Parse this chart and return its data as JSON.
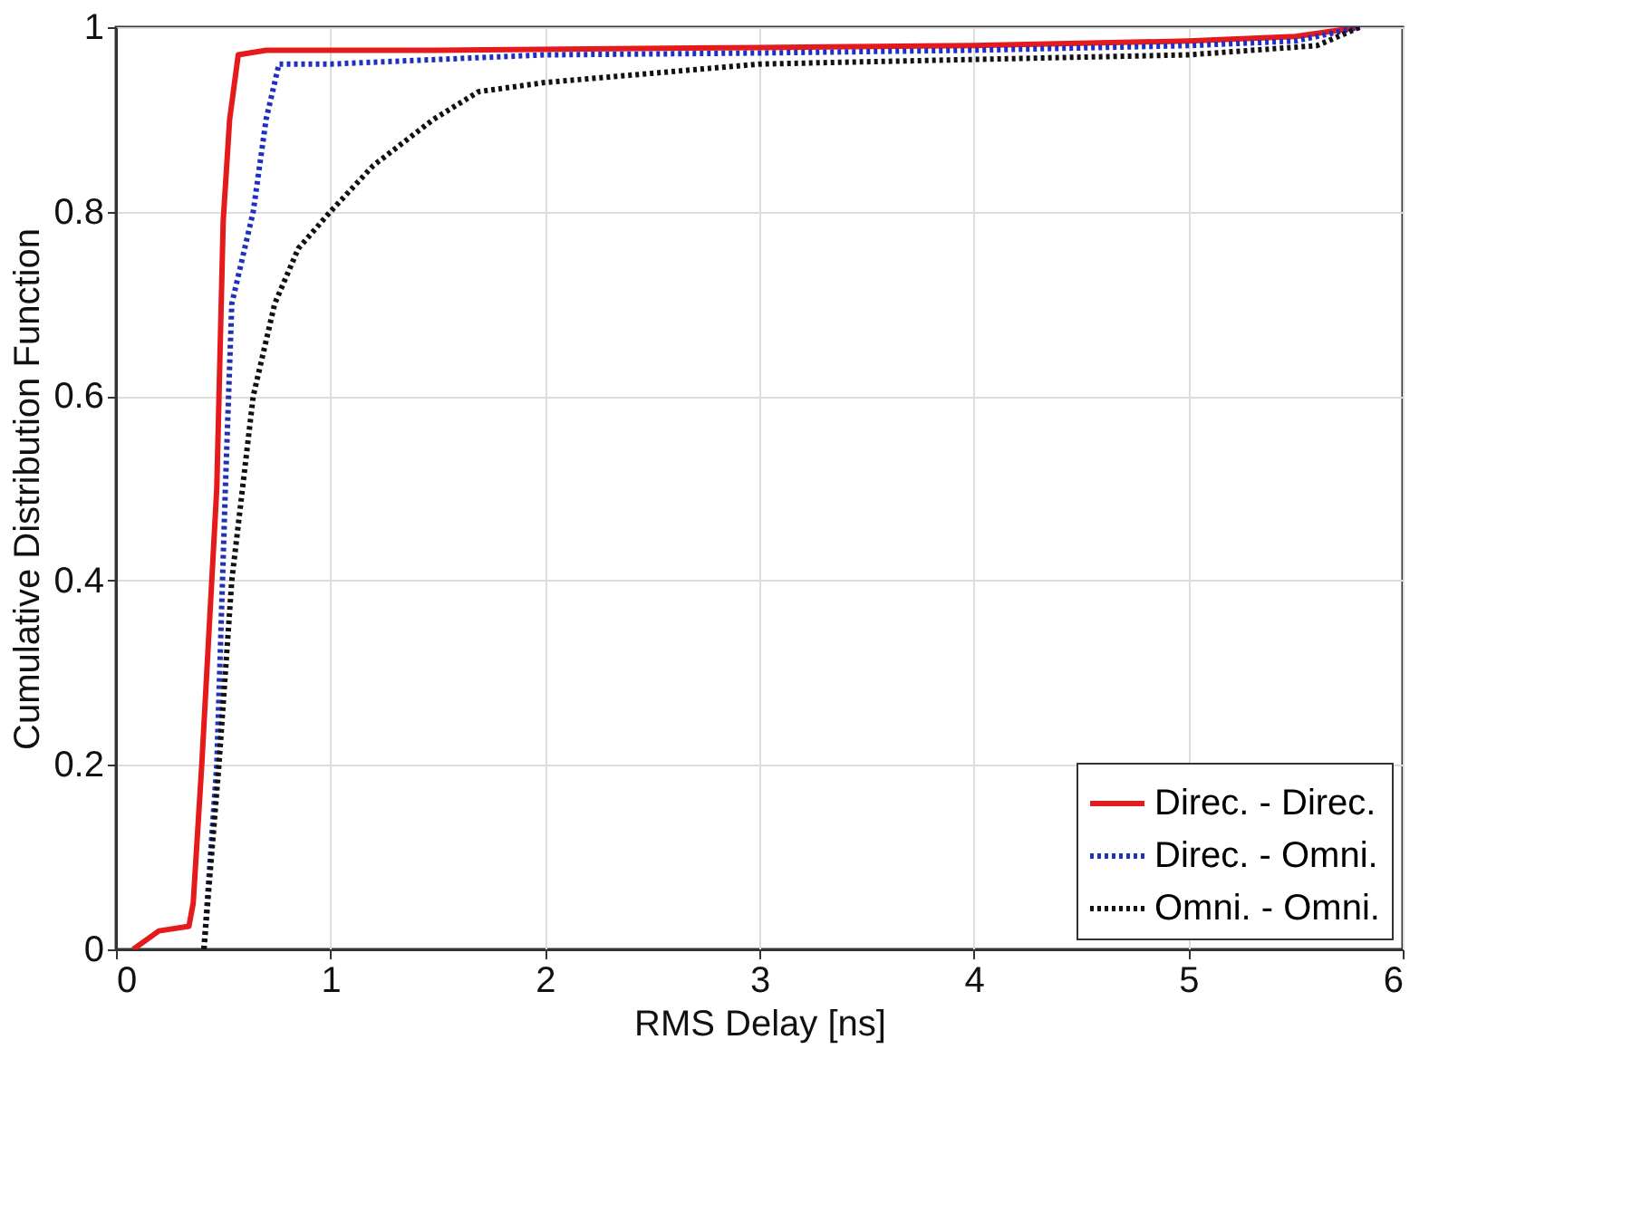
{
  "chart_data": {
    "type": "line",
    "xlabel": "RMS Delay [ns]",
    "ylabel": "Cumulative Distribution Function",
    "xlim": [
      0,
      6
    ],
    "ylim": [
      0,
      1
    ],
    "xticks": [
      0,
      1,
      2,
      3,
      4,
      5,
      6
    ],
    "yticks": [
      0,
      0.2,
      0.4,
      0.6,
      0.8,
      1
    ],
    "grid": true,
    "legend": "bottom right",
    "marker": "none",
    "series": [
      {
        "name": "Direc. - Direc.",
        "color": "#e41a1c",
        "line_style": "solid",
        "x": [
          0.08,
          0.2,
          0.34,
          0.36,
          0.4,
          0.47,
          0.5,
          0.53,
          0.57,
          0.7,
          1.5,
          3,
          4,
          5,
          5.5,
          5.8
        ],
        "values": [
          0.0,
          0.02,
          0.025,
          0.05,
          0.2,
          0.5,
          0.79,
          0.9,
          0.97,
          0.975,
          0.975,
          0.978,
          0.98,
          0.985,
          0.99,
          1.0
        ]
      },
      {
        "name": "Direc. - Omni.",
        "color": "#1f2fbf",
        "line_style": "dotted",
        "x": [
          0.41,
          0.44,
          0.47,
          0.51,
          0.54,
          0.64,
          0.7,
          0.76,
          1.0,
          1.5,
          2,
          3,
          4,
          5,
          5.5,
          5.8
        ],
        "values": [
          0.0,
          0.1,
          0.2,
          0.5,
          0.7,
          0.8,
          0.9,
          0.96,
          0.96,
          0.965,
          0.97,
          0.972,
          0.975,
          0.98,
          0.985,
          1.0
        ]
      },
      {
        "name": "Omni. - Omni.",
        "color": "#111111",
        "line_style": "dotted",
        "x": [
          0.41,
          0.48,
          0.54,
          0.64,
          0.74,
          0.85,
          1.0,
          1.2,
          1.48,
          1.69,
          2.0,
          2.5,
          3,
          4,
          5,
          5.6,
          5.8
        ],
        "values": [
          0.0,
          0.2,
          0.4,
          0.6,
          0.7,
          0.76,
          0.8,
          0.85,
          0.9,
          0.93,
          0.94,
          0.95,
          0.96,
          0.965,
          0.97,
          0.98,
          1.0
        ]
      }
    ]
  }
}
